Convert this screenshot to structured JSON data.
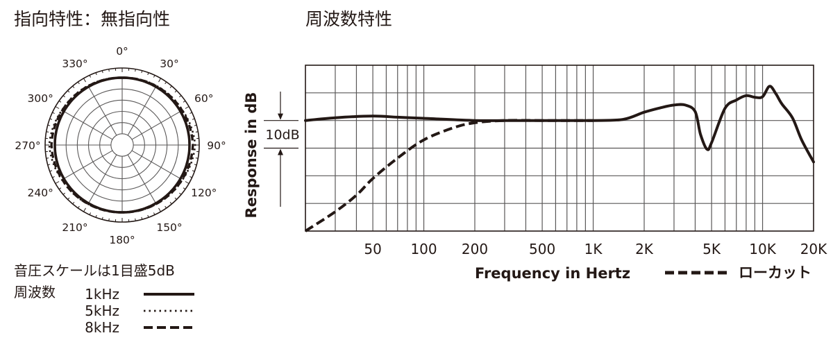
{
  "titles": {
    "polar": "指向特性：無指向性",
    "frequency": "周波数特性"
  },
  "legend": {
    "scale_note": "音圧スケールは1目盛5dB",
    "series_heading": "周波数",
    "lowcut": "ローカット"
  },
  "colors": {
    "ink": "#231815",
    "grid": "#595757",
    "background": "#ffffff"
  },
  "chart_data": [
    {
      "type": "polar",
      "title": "指向特性：無指向性",
      "angle_labels": [
        "0°",
        "30°",
        "60°",
        "90°",
        "120°",
        "150°",
        "180°",
        "210°",
        "240°",
        "270°",
        "300°",
        "330°"
      ],
      "radial_scale_note": "音圧スケールは1目盛5dB",
      "radial_step_db": 5,
      "series": [
        {
          "name": "1kHz",
          "line_style": "solid",
          "angles_deg": [
            0,
            30,
            60,
            90,
            120,
            150,
            180,
            210,
            240,
            270,
            300,
            330
          ],
          "level_db": [
            0,
            0,
            0,
            0,
            0,
            0,
            0,
            0,
            0,
            0,
            0,
            0
          ]
        },
        {
          "name": "5kHz",
          "line_style": "dotted",
          "angles_deg": [
            0,
            30,
            60,
            90,
            120,
            150,
            180,
            210,
            240,
            270,
            300,
            330
          ],
          "level_db": [
            0,
            0.5,
            1.0,
            2.5,
            1.0,
            0.4,
            0,
            0.4,
            1.0,
            2.5,
            1.0,
            0.5
          ]
        },
        {
          "name": "8kHz",
          "line_style": "dashed",
          "angles_deg": [
            0,
            30,
            60,
            90,
            120,
            150,
            180,
            210,
            240,
            270,
            300,
            330
          ],
          "level_db": [
            0,
            0.3,
            0.8,
            1.5,
            0.8,
            0.3,
            0,
            0.3,
            0.8,
            1.5,
            0.8,
            0.3
          ]
        }
      ]
    },
    {
      "type": "line",
      "title": "周波数特性",
      "xlabel": "Frequency in Hertz",
      "ylabel": "Response in dB",
      "x_scale": "log",
      "xlim": [
        20,
        20000
      ],
      "ylim": [
        -20,
        10
      ],
      "grid": true,
      "x_ticks": [
        {
          "value": 50,
          "label": "50"
        },
        {
          "value": 100,
          "label": "100"
        },
        {
          "value": 200,
          "label": "200"
        },
        {
          "value": 500,
          "label": "500"
        },
        {
          "value": 1000,
          "label": "1K"
        },
        {
          "value": 2000,
          "label": "2K"
        },
        {
          "value": 5000,
          "label": "5K"
        },
        {
          "value": 10000,
          "label": "10K"
        },
        {
          "value": 20000,
          "label": "20K"
        }
      ],
      "scale_marker_label": "10dB",
      "series": [
        {
          "name": "",
          "line_style": "solid",
          "x": [
            20,
            30,
            50,
            70,
            100,
            200,
            300,
            500,
            700,
            1000,
            1500,
            2000,
            2500,
            3000,
            3500,
            4000,
            4300,
            4700,
            5000,
            6000,
            7000,
            8000,
            9000,
            10000,
            11000,
            12000,
            13000,
            15000,
            17000,
            20000
          ],
          "y": [
            0,
            0.5,
            0.8,
            0.6,
            0.4,
            0,
            0,
            0,
            0,
            0,
            0.2,
            1.5,
            2.3,
            2.8,
            2.8,
            1.6,
            -2.5,
            -5.2,
            -4.0,
            2.2,
            3.7,
            4.5,
            4.2,
            4.3,
            6.2,
            4.8,
            3.0,
            0.5,
            -3.5,
            -7.5
          ]
        },
        {
          "name": "ローカット",
          "line_style": "dashed",
          "x": [
            20,
            30,
            40,
            50,
            70,
            100,
            150,
            200,
            300,
            500,
            700,
            1000
          ],
          "y": [
            -20,
            -16.5,
            -13.5,
            -10.5,
            -6.8,
            -3.5,
            -1.3,
            -0.4,
            0,
            0,
            0,
            0
          ]
        }
      ]
    }
  ]
}
